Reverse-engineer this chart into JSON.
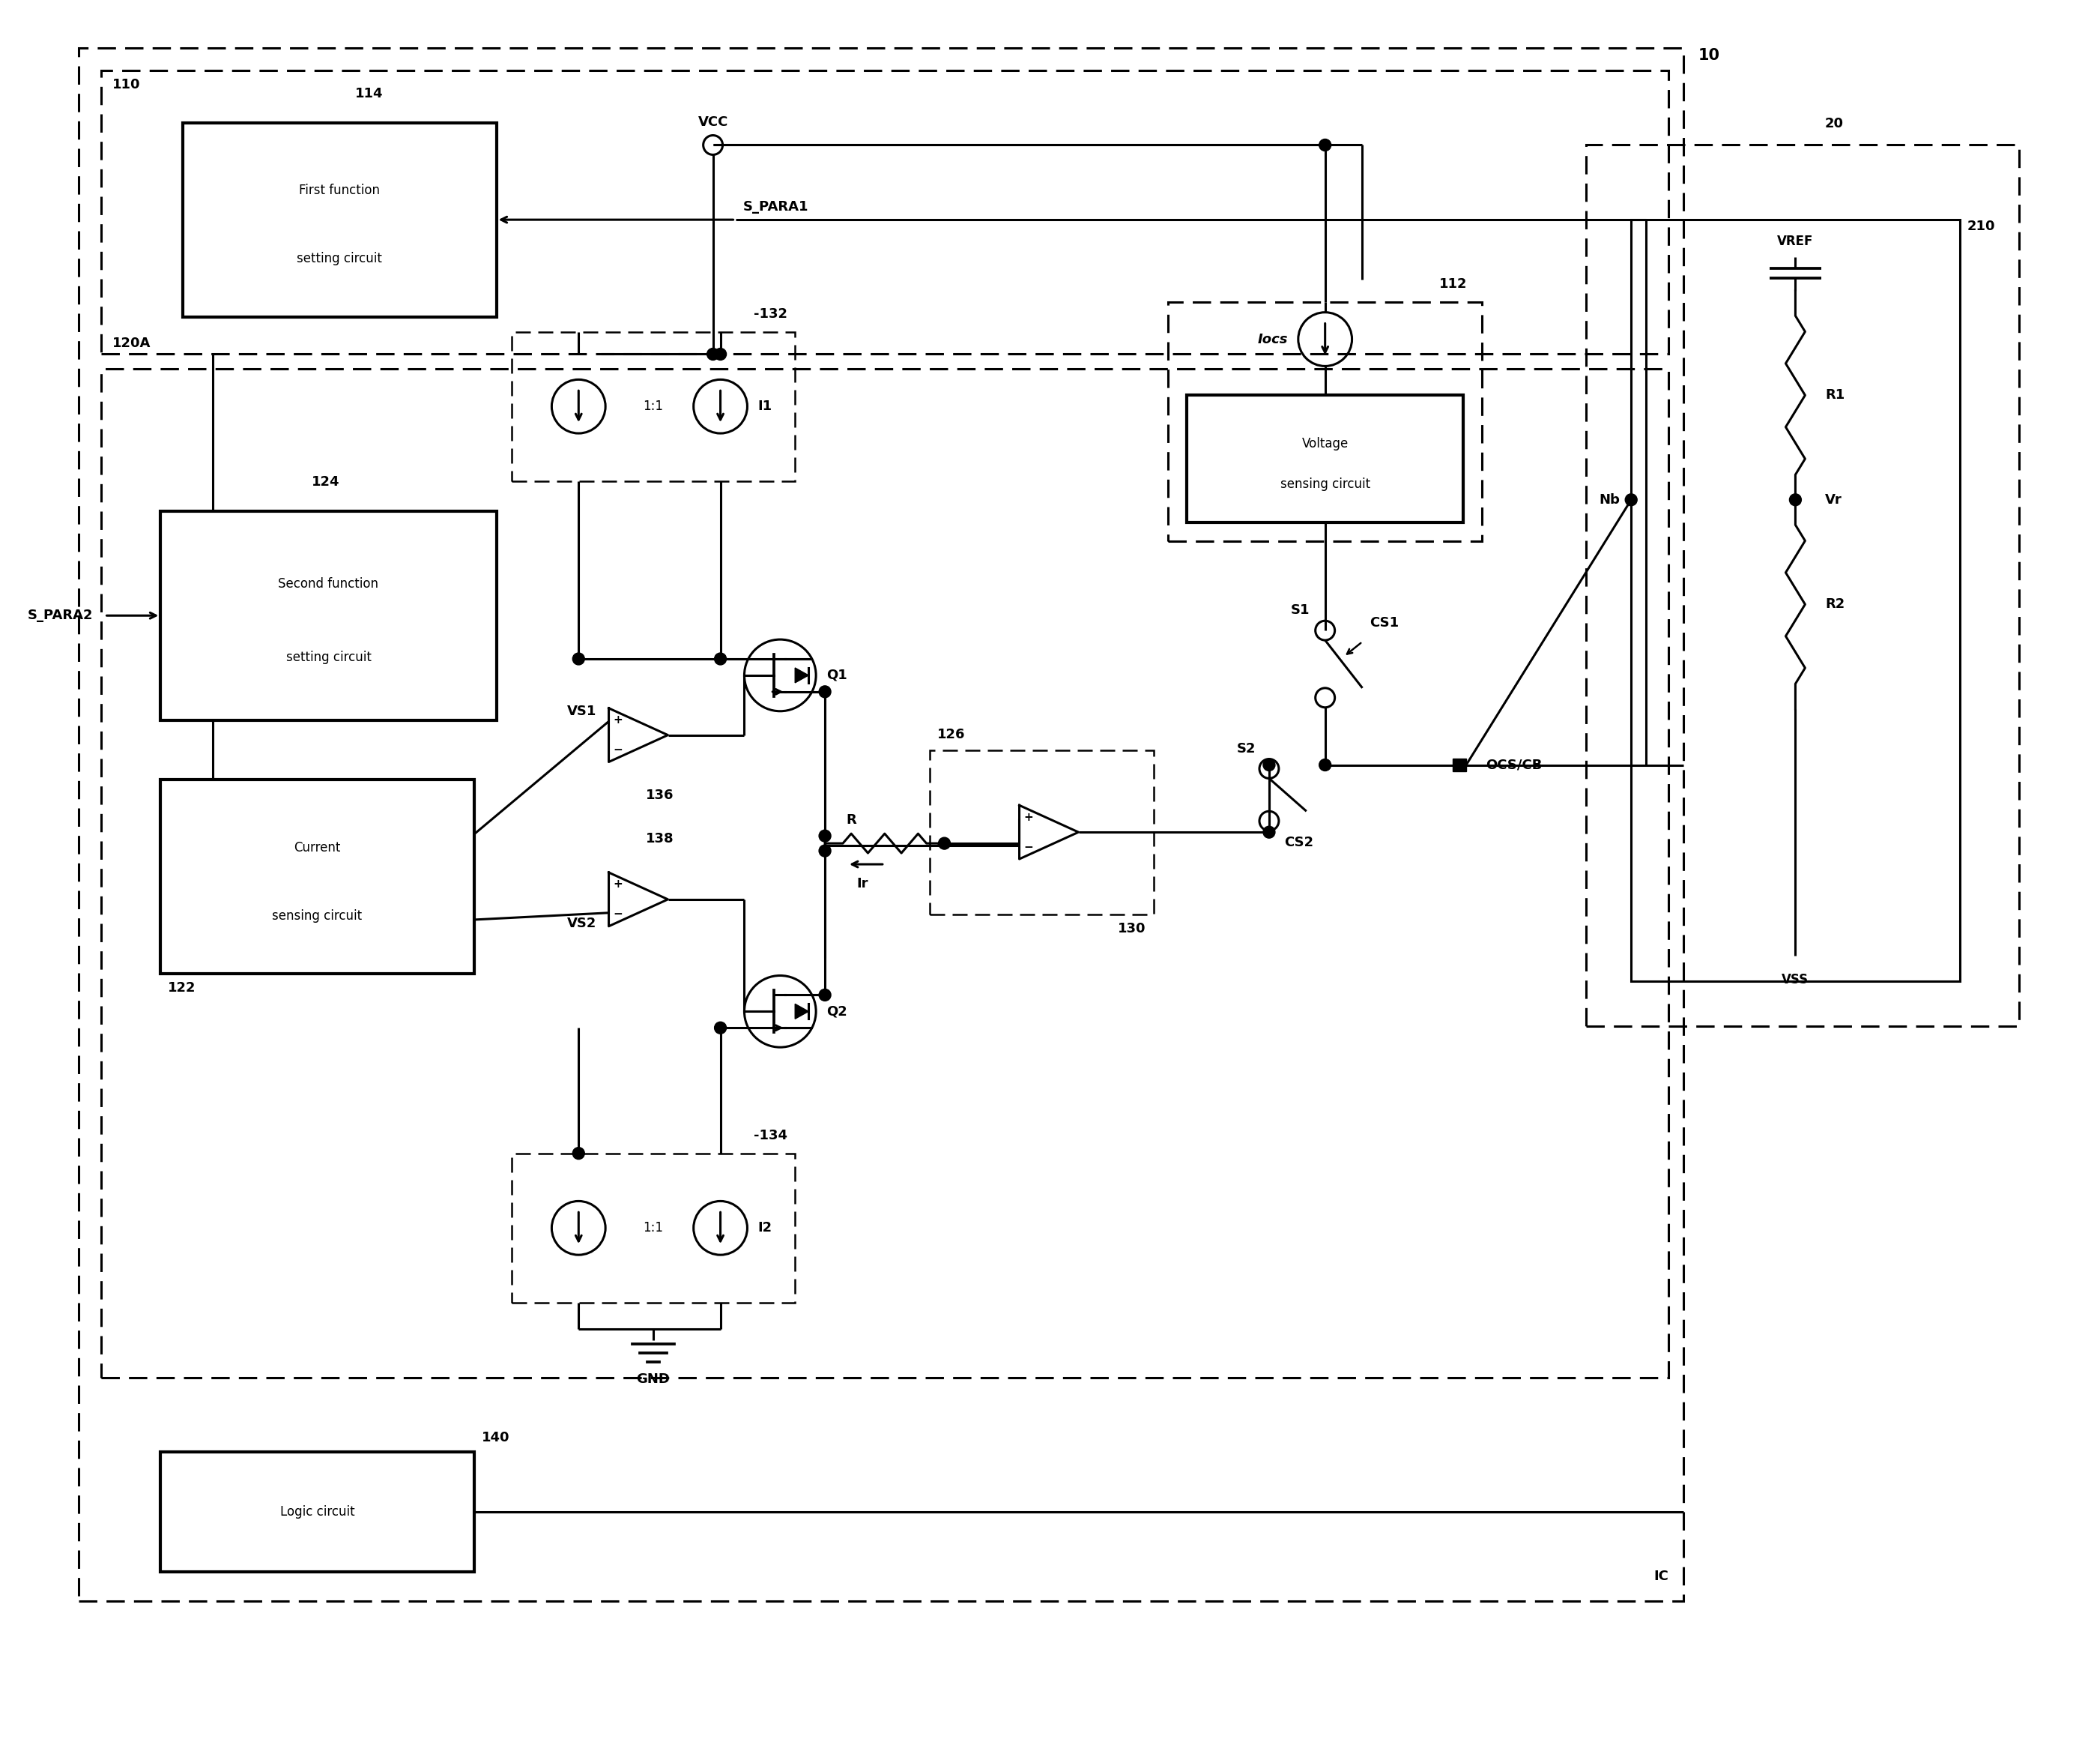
{
  "fig_width": 28.03,
  "fig_height": 23.2,
  "bg_color": "#ffffff",
  "labels": {
    "IC_label": "IC",
    "outer_box_label": "10",
    "label_110": "110",
    "label_114": "114",
    "first_func_text1": "First function",
    "first_func_text2": "setting circuit",
    "s_para1": "S_PARA1",
    "vcc": "VCC",
    "iocs": "Iocs",
    "label_112": "112",
    "voltage_text1": "Voltage",
    "voltage_text2": "sensing circuit",
    "label_120A": "120A",
    "label_124": "124",
    "s_para2": "S_PARA2",
    "second_func1": "Second function",
    "second_func2": "setting circuit",
    "label_132": "-132",
    "label_134": "-134",
    "current1": "Current",
    "current2": "sensing circuit",
    "label_122": "122",
    "vs1": "VS1",
    "vs2": "VS2",
    "q1": "Q1",
    "q2": "Q2",
    "label_136": "136",
    "label_138": "138",
    "r": "R",
    "ir": "Ir",
    "label_126": "126",
    "label_130": "130",
    "s1": "S1",
    "s2": "S2",
    "cs1": "CS1",
    "cs2": "CS2",
    "ocs_cb": "OCS/CB",
    "label_20": "20",
    "label_210": "210",
    "vref": "VREF",
    "r1": "R1",
    "r2": "R2",
    "vr": "Vr",
    "nb": "Nb",
    "vss": "VSS",
    "i1": "I1",
    "i2": "I2",
    "ratio": "1:1",
    "gnd": "GND",
    "logic": "Logic circuit",
    "label_140": "140"
  }
}
